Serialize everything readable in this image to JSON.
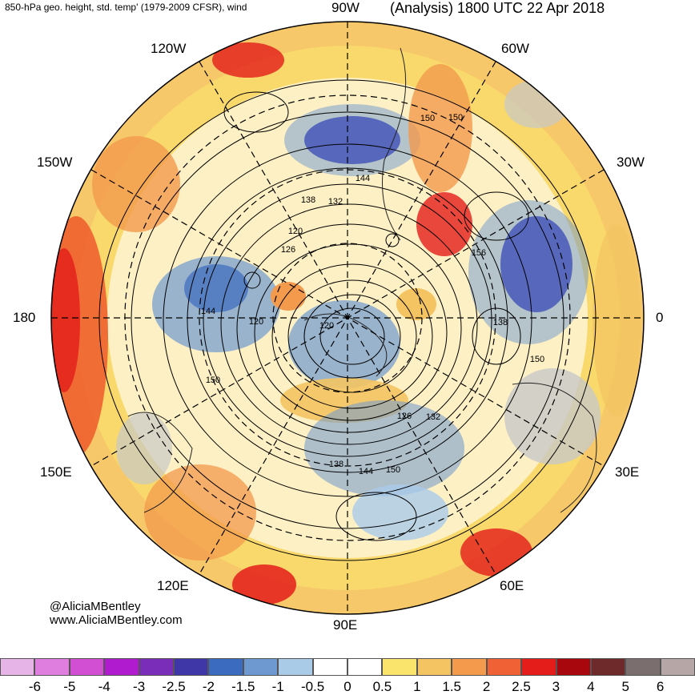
{
  "header": {
    "subtitle": "850-hPa geo. height, std. temp' (1979-2009 CFSR), wind",
    "analysis_label": "(Analysis) 1800 UTC 22 Apr 2018"
  },
  "credits": {
    "handle": "@AliciaMBentley",
    "website": "www.AliciaMBentley.com"
  },
  "longitude_labels": {
    "lon_90w": "90W",
    "lon_60w": "60W",
    "lon_30w": "30W",
    "lon_0": "0",
    "lon_30e": "30E",
    "lon_60e": "60E",
    "lon_90e": "90E",
    "lon_120e": "120E",
    "lon_150e": "150E",
    "lon_180": "180",
    "lon_150w": "150W",
    "lon_120w": "120W"
  },
  "contour_labels": [
    "150",
    "150",
    "144",
    "138",
    "132",
    "120",
    "126",
    "156",
    "144",
    "120",
    "120",
    "138",
    "150",
    "150",
    "126",
    "132",
    "138",
    "144",
    "150"
  ],
  "colorbar": {
    "tick_labels": [
      "-6",
      "-5",
      "-4",
      "-3",
      "-2.5",
      "-2",
      "-1.5",
      "-1",
      "-0.5",
      "0",
      "0.5",
      "1",
      "1.5",
      "2",
      "2.5",
      "3",
      "4",
      "5",
      "6"
    ],
    "colors": [
      "#e6b4e6",
      "#e07ee0",
      "#d24ed2",
      "#b01bd0",
      "#7a2db8",
      "#3f36a8",
      "#3b6bbf",
      "#6e98d0",
      "#a9cbe8",
      "#ffffff",
      "#ffffff",
      "#fbe46c",
      "#f4c462",
      "#f39a4c",
      "#f06236",
      "#e41c1a",
      "#a8070d",
      "#6e2a2a",
      "#7a6e6e",
      "#b7a6a6"
    ]
  },
  "colors": {
    "cold_anomaly": "#3f50b5",
    "warm_anomaly": "#ef5a2c",
    "land_mask": "#c8c8c8"
  }
}
